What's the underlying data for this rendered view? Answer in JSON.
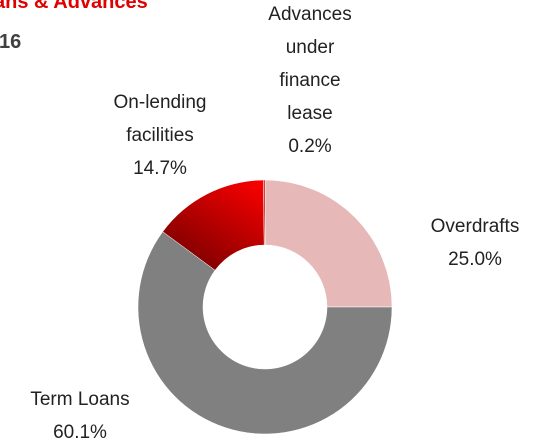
{
  "chart_data": {
    "type": "donut",
    "title": "ans & Advances",
    "subtitle": "16",
    "categories": [
      "Overdrafts",
      "Term Loans",
      "On-lending facilities",
      "Advances under finance lease"
    ],
    "values": [
      25.0,
      60.1,
      14.7,
      0.2
    ],
    "value_labels": [
      "25.0%",
      "60.1%",
      "14.7%",
      "0.2%"
    ],
    "colors": [
      "#e6b8b7",
      "#808080",
      "#ff0000",
      "#c00000"
    ]
  }
}
